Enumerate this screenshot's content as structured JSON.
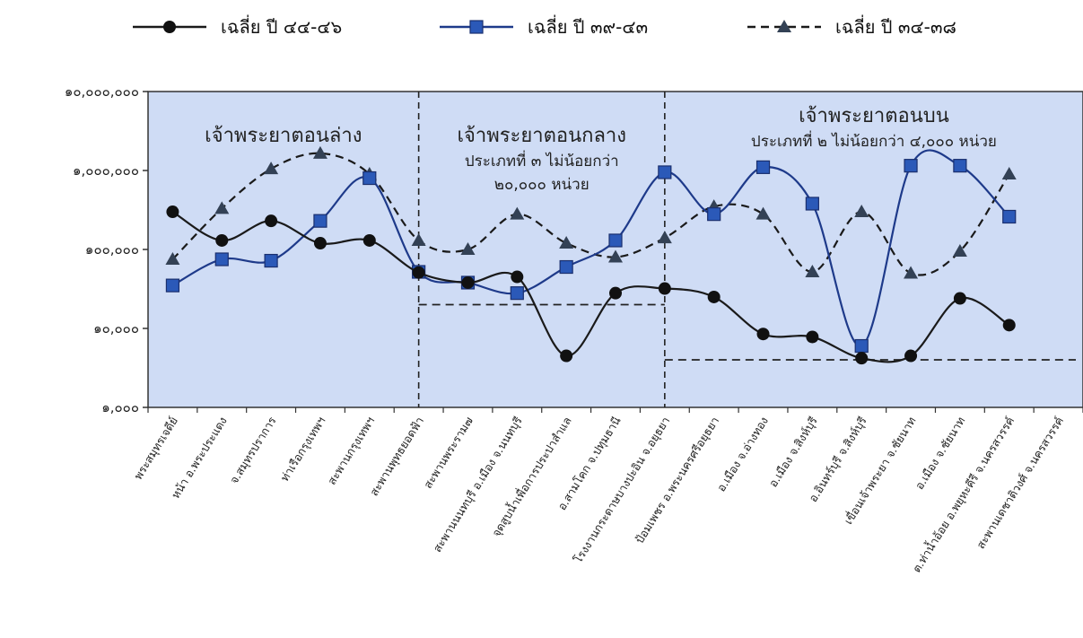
{
  "chart_data": {
    "type": "line",
    "yscale": "log",
    "ylim": [
      1000,
      10000000
    ],
    "yticks": [
      {
        "value": 1000,
        "label": "๑,๐๐๐"
      },
      {
        "value": 10000,
        "label": "๑๐,๐๐๐"
      },
      {
        "value": 100000,
        "label": "๑๐๐,๐๐๐"
      },
      {
        "value": 1000000,
        "label": "๑,๐๐๐,๐๐๐"
      },
      {
        "value": 10000000,
        "label": "๑๐,๐๐๐,๐๐๐"
      }
    ],
    "grid": false,
    "legend_position": "top",
    "categories": [
      "พระสมุทรเจดีย์",
      "หน้า อ.พระประแดง",
      "จ.สมุทรปราการ",
      "ท่าเรือกรุงเทพฯ",
      "สะพานกรุงเทพฯ",
      "สะพานพุทธยอดฟ้า",
      "สะพานพระราม๗",
      "สะพานนนทบุรี อ.เมือง จ.นนทบุรี",
      "จุดสูบน้ำเพื่อการประปาสำแล",
      "อ.สามโคก จ.ปทุมธานี",
      "โรงงานกระดาษบางปะอิน จ.อยุธยา",
      "ป้อมเพชร อ.พระนครศรีอยุธยา",
      "อ.เมือง จ.อ่างทอง",
      "อ.เมือง จ.สิงห์บุรี",
      "อ.อินทร์บุรี จ.สิงห์บุรี",
      "เขื่อนเจ้าพระยา จ.ชัยนาท",
      "อ.เมือง จ.ชัยนาท",
      "ต.ท่าน้ำอ้อย อ.พยุหะคีรี จ.นครสวรรค์",
      "สะพานเดชาติวงศ์ จ.นครสวรรค์"
    ],
    "series": [
      {
        "name": "เฉลี่ย ปี ๔๔-๔๖",
        "style": "solid",
        "marker": "circle",
        "color": "#1a1a1a",
        "values": [
          300000,
          130000,
          230000,
          120000,
          130000,
          51000,
          38000,
          45000,
          4500,
          28000,
          32000,
          25000,
          8500,
          7800,
          4200,
          4500,
          24000,
          11000,
          null
        ]
      },
      {
        "name": "เฉลี่ย ปี ๓๙-๔๓",
        "style": "solid",
        "marker": "square",
        "color": "#1e3a8a",
        "values": [
          35000,
          75000,
          72000,
          230000,
          800000,
          52000,
          38000,
          28000,
          60000,
          130000,
          950000,
          280000,
          1100000,
          380000,
          6000,
          1150000,
          1150000,
          260000,
          null
        ]
      },
      {
        "name": "เฉลี่ย ปี ๓๔-๓๘",
        "style": "dashed",
        "marker": "triangle",
        "color": "#1a1a1a",
        "values": [
          75000,
          330000,
          1050000,
          1650000,
          900000,
          130000,
          100000,
          280000,
          120000,
          80000,
          140000,
          350000,
          280000,
          52000,
          300000,
          50000,
          95000,
          900000,
          null
        ]
      }
    ],
    "annotations": [
      {
        "region": "lower",
        "title": "เจ้าพระยาตอนล่าง"
      },
      {
        "region": "middle",
        "title": "เจ้าพระยาตอนกลาง",
        "subtitle": [
          "ประเภทที่ ๓ ไม่น้อยกว่า",
          "๒๐,๐๐๐ หน่วย"
        ],
        "threshold": 20000
      },
      {
        "region": "upper",
        "title": "เจ้าพระยาตอนบน",
        "subtitle": [
          "ประเภทที่ ๒ ไม่น้อยกว่า ๔,๐๐๐ หน่วย"
        ],
        "threshold": 4000
      }
    ],
    "colors": {
      "plot_background": "#cfdcf5",
      "circle_series": "#1a1a1a",
      "square_series": "#1e3a8a",
      "triangle_series": "#334155"
    }
  }
}
